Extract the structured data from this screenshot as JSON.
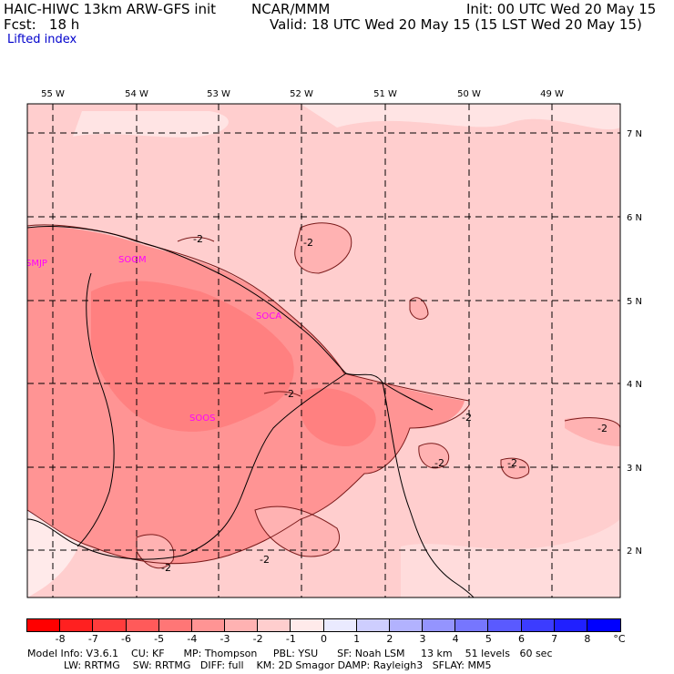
{
  "header": {
    "line1_left": "HAIC-HIWC 13km ARW-GFS init",
    "line1_center": "NCAR/MMM",
    "line1_right": "Init: 00 UTC Wed 20 May 15",
    "line2_left": "Fcst:   18 h",
    "line2_right": "Valid: 18 UTC Wed 20 May 15 (15 LST Wed 20 May 15)",
    "field": "Lifted index"
  },
  "lon_labels": [
    "55 W",
    "54 W",
    "53 W",
    "52 W",
    "51 W",
    "50 W",
    "49 W"
  ],
  "lat_labels": [
    "7 N",
    "6 N",
    "5 N",
    "4 N",
    "3 N",
    "2 N"
  ],
  "stations": [
    "SMJP",
    "SOGM",
    "SOCA",
    "SOOS"
  ],
  "contour_label": "-2",
  "colorbar": {
    "labels": [
      "-8",
      "-7",
      "-6",
      "-5",
      "-4",
      "-3",
      "-2",
      "-1",
      "0",
      "1",
      "2",
      "3",
      "4",
      "5",
      "6",
      "7",
      "8"
    ],
    "unit": "°C",
    "colors": [
      "#ff0000",
      "#ff2020",
      "#ff3c3c",
      "#ff5a5a",
      "#ff7676",
      "#ff9494",
      "#ffb2b2",
      "#ffcece",
      "#ffeaea",
      "#eaeaff",
      "#cecefe",
      "#b2b2fe",
      "#9494fe",
      "#7676fe",
      "#5a5aff",
      "#3c3cff",
      "#2020ff",
      "#0000ff"
    ]
  },
  "footer": {
    "line1": "Model Info: V3.6.1    CU: KF      MP: Thompson     PBL: YSU      SF: Noah LSM     13 km    51 levels   60 sec",
    "line2": "LW: RRTMG    SW: RRTMG   DIFF: full    KM: 2D Smagor DAMP: Rayleigh3   SFLAY: MM5"
  }
}
